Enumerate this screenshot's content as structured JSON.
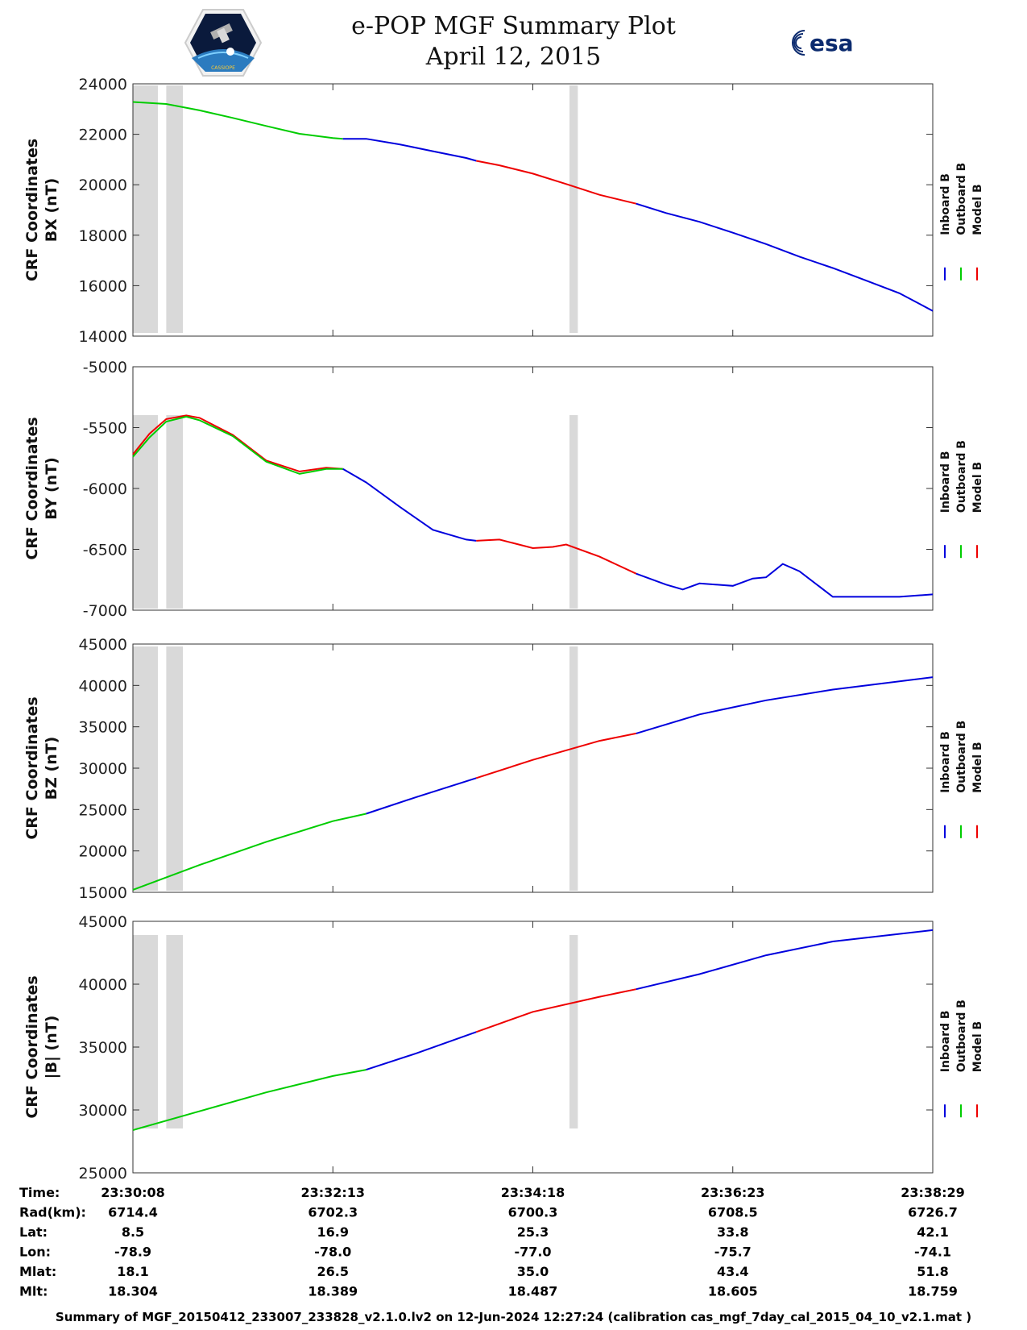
{
  "title": {
    "line1": "e-POP MGF Summary Plot",
    "line2": "April 12, 2015"
  },
  "logos": {
    "left": "cassiope-mission-logo",
    "right_text": "esa"
  },
  "colors": {
    "inboard": "#0000dd",
    "outboard": "#00cc00",
    "model": "#ee0000",
    "gap": "#d9d9d9"
  },
  "chart_data": [
    {
      "type": "line",
      "ylabel_line1": "CRF Coordinates",
      "ylabel_line2": "BX (nT)",
      "ylim": [
        14000,
        24000
      ],
      "yticks": [
        "14000",
        "16000",
        "18000",
        "20000",
        "22000",
        "24000"
      ],
      "legend": [
        "Inboard B",
        "Outboard B",
        "Model B"
      ],
      "gaps": [
        [
          0,
          0.75
        ],
        [
          1.0,
          1.5
        ],
        [
          13.1,
          13.35
        ]
      ],
      "segments": [
        {
          "series": "Outboard B",
          "points": [
            [
              0,
              23280
            ],
            [
              1,
              23200
            ],
            [
              2,
              22950
            ],
            [
              3,
              22650
            ],
            [
              4,
              22330
            ],
            [
              5,
              22020
            ],
            [
              6,
              21850
            ],
            [
              6.3,
              21820
            ]
          ]
        },
        {
          "series": "Inboard B",
          "points": [
            [
              6.3,
              21820
            ],
            [
              7,
              21820
            ],
            [
              8,
              21600
            ],
            [
              9,
              21330
            ],
            [
              10,
              21060
            ],
            [
              10.3,
              20950
            ]
          ]
        },
        {
          "series": "Model B",
          "points": [
            [
              10.3,
              20950
            ],
            [
              11,
              20770
            ],
            [
              12,
              20440
            ],
            [
              13,
              20030
            ],
            [
              14,
              19600
            ],
            [
              15.1,
              19250
            ]
          ]
        },
        {
          "series": "Inboard B",
          "points": [
            [
              15.1,
              19250
            ],
            [
              16,
              18880
            ],
            [
              17,
              18530
            ],
            [
              18,
              18100
            ],
            [
              19,
              17650
            ],
            [
              20,
              17150
            ],
            [
              21,
              16700
            ],
            [
              22,
              16200
            ],
            [
              23,
              15700
            ],
            [
              24,
              15000
            ]
          ]
        }
      ]
    },
    {
      "type": "line",
      "ylabel_line1": "CRF Coordinates",
      "ylabel_line2": "BY (nT)",
      "ylim": [
        -7000,
        -5000
      ],
      "yticks": [
        "-7000",
        "-6500",
        "-6000",
        "-5500",
        "-5000"
      ],
      "legend": [
        "Inboard B",
        "Outboard B",
        "Model B"
      ],
      "gaps": [
        [
          0,
          0.75
        ],
        [
          1.0,
          1.5
        ],
        [
          13.1,
          13.35
        ]
      ],
      "segments": [
        {
          "series": "Model B",
          "points": [
            [
              0,
              -5720
            ],
            [
              0.5,
              -5550
            ],
            [
              1,
              -5430
            ],
            [
              1.6,
              -5400
            ],
            [
              2,
              -5420
            ],
            [
              3,
              -5560
            ],
            [
              4,
              -5770
            ],
            [
              5,
              -5860
            ],
            [
              5.8,
              -5830
            ],
            [
              6.3,
              -5840
            ]
          ]
        },
        {
          "series": "Outboard B",
          "points": [
            [
              0,
              -5740
            ],
            [
              0.5,
              -5580
            ],
            [
              1,
              -5450
            ],
            [
              1.6,
              -5410
            ],
            [
              2,
              -5440
            ],
            [
              3,
              -5570
            ],
            [
              4,
              -5780
            ],
            [
              5,
              -5880
            ],
            [
              5.8,
              -5840
            ],
            [
              6.3,
              -5840
            ]
          ]
        },
        {
          "series": "Inboard B",
          "points": [
            [
              6.3,
              -5840
            ],
            [
              7,
              -5950
            ],
            [
              8,
              -6150
            ],
            [
              9,
              -6340
            ],
            [
              10,
              -6420
            ],
            [
              10.3,
              -6430
            ]
          ]
        },
        {
          "series": "Model B",
          "points": [
            [
              10.3,
              -6430
            ],
            [
              11,
              -6420
            ],
            [
              12,
              -6490
            ],
            [
              12.6,
              -6480
            ],
            [
              13,
              -6460
            ],
            [
              14,
              -6560
            ],
            [
              15.1,
              -6700
            ]
          ]
        },
        {
          "series": "Inboard B",
          "points": [
            [
              15.1,
              -6700
            ],
            [
              16,
              -6790
            ],
            [
              16.5,
              -6830
            ],
            [
              17,
              -6780
            ],
            [
              18,
              -6800
            ],
            [
              18.6,
              -6740
            ],
            [
              19,
              -6730
            ],
            [
              19.5,
              -6620
            ],
            [
              20,
              -6680
            ],
            [
              21,
              -6890
            ],
            [
              22,
              -6890
            ],
            [
              23,
              -6890
            ],
            [
              24,
              -6870
            ]
          ]
        }
      ]
    },
    {
      "type": "line",
      "ylabel_line1": "CRF Coordinates",
      "ylabel_line2": "BZ (nT)",
      "ylim": [
        15000,
        45000
      ],
      "yticks": [
        "15000",
        "20000",
        "25000",
        "30000",
        "35000",
        "40000",
        "45000"
      ],
      "legend": [
        "Inboard B",
        "Outboard B",
        "Model B"
      ],
      "gaps": [
        [
          0,
          0.75
        ],
        [
          1.0,
          1.5
        ],
        [
          13.1,
          13.35
        ]
      ],
      "segments": [
        {
          "series": "Outboard B",
          "points": [
            [
              0,
              15300
            ],
            [
              2,
              18300
            ],
            [
              4,
              21100
            ],
            [
              6,
              23600
            ],
            [
              7,
              24500
            ]
          ]
        },
        {
          "series": "Inboard B",
          "points": [
            [
              7,
              24500
            ],
            [
              8.5,
              26500
            ],
            [
              10.3,
              28800
            ]
          ]
        },
        {
          "series": "Model B",
          "points": [
            [
              10.3,
              28800
            ],
            [
              12,
              31000
            ],
            [
              14,
              33300
            ],
            [
              15.1,
              34200
            ]
          ]
        },
        {
          "series": "Inboard B",
          "points": [
            [
              15.1,
              34200
            ],
            [
              17,
              36500
            ],
            [
              19,
              38200
            ],
            [
              21,
              39500
            ],
            [
              24,
              41000
            ]
          ]
        }
      ]
    },
    {
      "type": "line",
      "ylabel_line1": "CRF Coordinates",
      "ylabel_line2": "|B| (nT)",
      "ylim": [
        25000,
        45000
      ],
      "yticks": [
        "25000",
        "30000",
        "35000",
        "40000",
        "45000"
      ],
      "legend": [
        "Inboard B",
        "Outboard B",
        "Model B"
      ],
      "gaps": [
        [
          0,
          0.75
        ],
        [
          1.0,
          1.5
        ],
        [
          13.1,
          13.35
        ]
      ],
      "segments": [
        {
          "series": "Outboard B",
          "points": [
            [
              0,
              28400
            ],
            [
              2,
              29900
            ],
            [
              4,
              31400
            ],
            [
              6,
              32700
            ],
            [
              7,
              33200
            ]
          ]
        },
        {
          "series": "Inboard B",
          "points": [
            [
              7,
              33200
            ],
            [
              8.5,
              34500
            ],
            [
              10.3,
              36200
            ]
          ]
        },
        {
          "series": "Model B",
          "points": [
            [
              10.3,
              36200
            ],
            [
              12,
              37800
            ],
            [
              14,
              39000
            ],
            [
              15.1,
              39600
            ]
          ]
        },
        {
          "series": "Inboard B",
          "points": [
            [
              15.1,
              39600
            ],
            [
              17,
              40800
            ],
            [
              19,
              42300
            ],
            [
              21,
              43400
            ],
            [
              24,
              44300
            ]
          ]
        }
      ]
    }
  ],
  "info_table": {
    "row_labels": [
      "Time:",
      "Rad(km):",
      "Lat:",
      "Lon:",
      "Mlat:",
      "Mlt:"
    ],
    "columns": [
      [
        "23:30:08",
        "6714.4",
        "8.5",
        "-78.9",
        "18.1",
        "18.304"
      ],
      [
        "23:32:13",
        "6702.3",
        "16.9",
        "-78.0",
        "26.5",
        "18.389"
      ],
      [
        "23:34:18",
        "6700.3",
        "25.3",
        "-77.0",
        "35.0",
        "18.487"
      ],
      [
        "23:36:23",
        "6708.5",
        "33.8",
        "-75.7",
        "43.4",
        "18.605"
      ],
      [
        "23:38:29",
        "6726.7",
        "42.1",
        "-74.1",
        "51.8",
        "18.759"
      ]
    ]
  },
  "footer": "Summary of MGF_20150412_233007_233828_v2.1.0.lv2 on 12-Jun-2024 12:27:24 (calibration cas_mgf_7day_cal_2015_04_10_v2.1.mat )"
}
